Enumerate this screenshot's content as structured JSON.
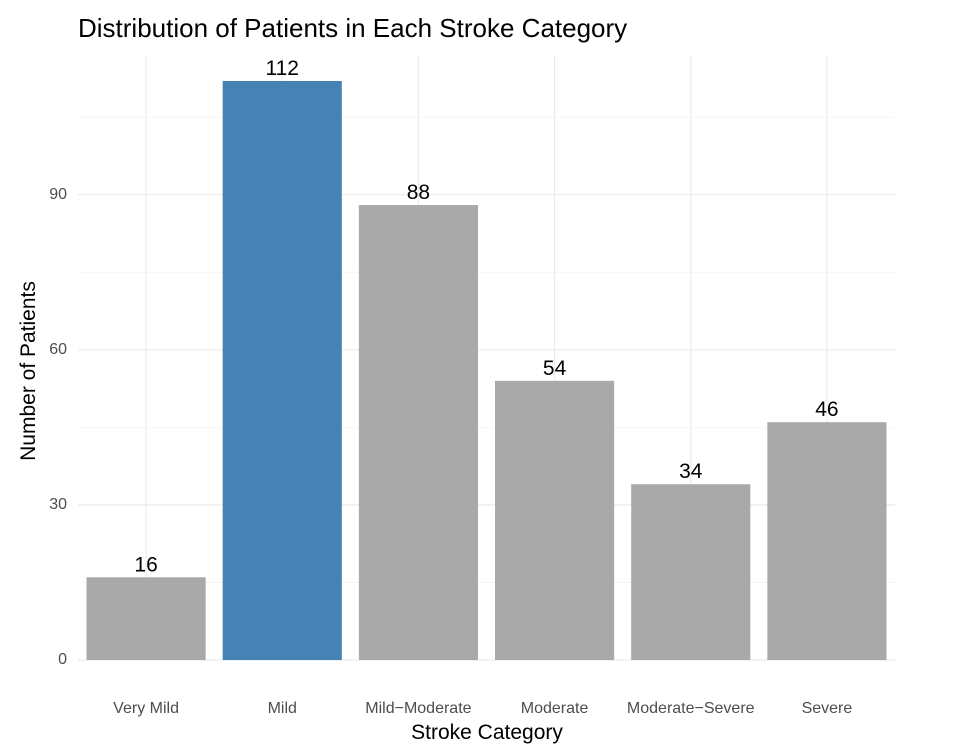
{
  "chart_data": {
    "type": "bar",
    "title": "Distribution of Patients in Each Stroke Category",
    "xlabel": "Stroke Category",
    "ylabel": "Number of Patients",
    "categories": [
      "Very Mild",
      "Mild",
      "Mild−Moderate",
      "Moderate",
      "Moderate−Severe",
      "Severe"
    ],
    "values": [
      16,
      112,
      88,
      54,
      34,
      46
    ],
    "bar_colors": [
      "#a9a9a9",
      "#4682b4",
      "#a9a9a9",
      "#a9a9a9",
      "#a9a9a9",
      "#a9a9a9"
    ],
    "yticks": [
      0,
      30,
      60,
      90
    ],
    "ylim": [
      0,
      112
    ],
    "grid": true,
    "legend": "none"
  }
}
